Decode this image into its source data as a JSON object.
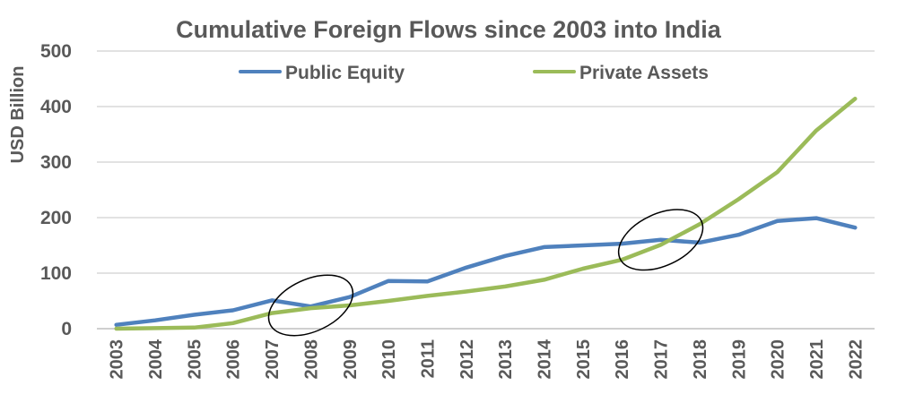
{
  "chart_data": {
    "type": "line",
    "title": "Cumulative Foreign Flows since 2003 into India",
    "xlabel": "",
    "ylabel": "USD Billion",
    "x": [
      "2003",
      "2004",
      "2005",
      "2006",
      "2007",
      "2008",
      "2009",
      "2010",
      "2011",
      "2012",
      "2013",
      "2014",
      "2015",
      "2016",
      "2017",
      "2018",
      "2019",
      "2020",
      "2021",
      "2022"
    ],
    "ylim": [
      0,
      500
    ],
    "yticks": [
      0,
      100,
      200,
      300,
      400,
      500
    ],
    "grid": true,
    "legend_position": "top",
    "series": [
      {
        "name": "Public Equity",
        "color": "#4f81bd",
        "values": [
          7,
          15,
          25,
          33,
          51,
          40,
          57,
          86,
          85,
          110,
          131,
          147,
          150,
          153,
          160,
          155,
          169,
          194,
          199,
          182
        ]
      },
      {
        "name": "Private Assets",
        "color": "#9bbb59",
        "values": [
          0,
          1,
          2,
          10,
          28,
          37,
          42,
          50,
          59,
          67,
          76,
          88,
          108,
          124,
          151,
          188,
          233,
          282,
          357,
          414
        ]
      }
    ],
    "annotations": [
      {
        "type": "ellipse",
        "shape": "circle-outline",
        "near_x": "2008",
        "near_y": 42
      },
      {
        "type": "ellipse",
        "shape": "circle-outline",
        "near_x": "2017",
        "near_y": 160
      }
    ]
  }
}
